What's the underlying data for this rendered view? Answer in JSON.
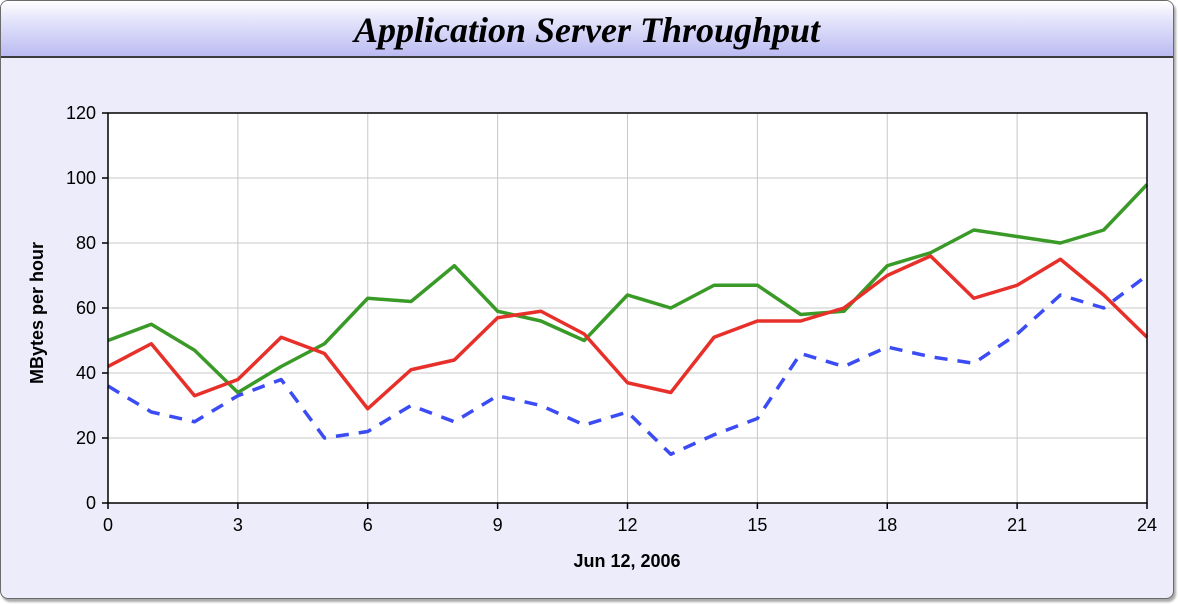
{
  "chart_data": {
    "type": "line",
    "title": "Application Server Throughput",
    "xlabel": "Jun 12, 2006",
    "ylabel": "MBytes per hour",
    "xlim": [
      0,
      24
    ],
    "ylim": [
      0,
      120
    ],
    "x_ticks": [
      "0",
      "3",
      "6",
      "9",
      "12",
      "15",
      "18",
      "21",
      "24"
    ],
    "y_ticks": [
      "0",
      "20",
      "40",
      "60",
      "80",
      "100",
      "120"
    ],
    "grid": true,
    "legend": "none",
    "x": [
      0,
      1,
      2,
      3,
      4,
      5,
      6,
      7,
      8,
      9,
      10,
      11,
      12,
      13,
      14,
      15,
      16,
      17,
      18,
      19,
      20,
      21,
      22,
      23,
      24
    ],
    "series": [
      {
        "color": "#3a9a28",
        "dashed": false,
        "values": [
          50,
          55,
          47,
          34,
          42,
          49,
          63,
          62,
          73,
          59,
          56,
          50,
          64,
          60,
          67,
          67,
          58,
          59,
          73,
          77,
          84,
          82,
          80,
          84,
          98
        ]
      },
      {
        "color": "#e8302a",
        "dashed": false,
        "values": [
          42,
          49,
          33,
          38,
          51,
          46,
          29,
          41,
          44,
          57,
          59,
          52,
          37,
          34,
          51,
          56,
          56,
          60,
          70,
          76,
          63,
          67,
          75,
          64,
          51
        ]
      },
      {
        "color": "#3b4cf5",
        "dashed": true,
        "values": [
          36,
          28,
          25,
          33,
          38,
          20,
          22,
          30,
          25,
          33,
          30,
          24,
          28,
          15,
          21,
          26,
          46,
          42,
          48,
          45,
          43,
          52,
          64,
          60,
          70
        ]
      }
    ]
  }
}
